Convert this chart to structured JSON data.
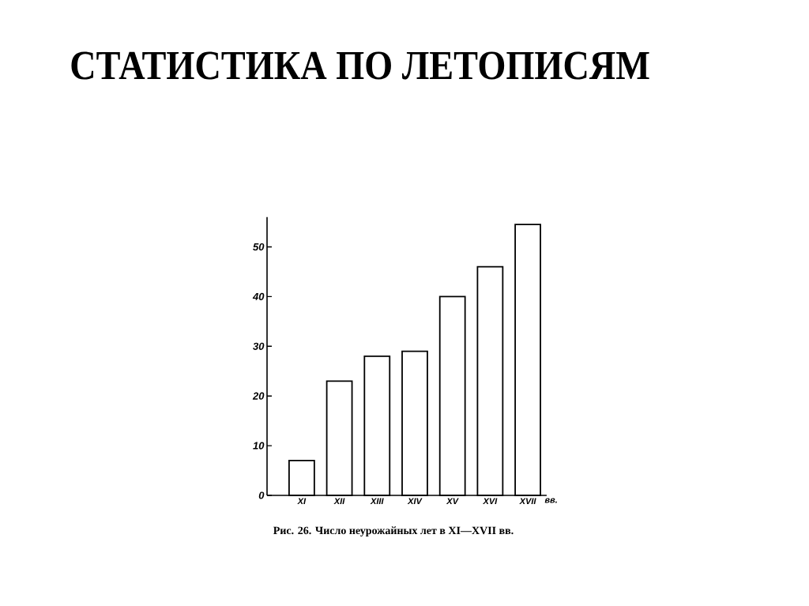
{
  "chart_data": {
    "type": "bar",
    "title": "СТАТИСТИКА ПО ЛЕТОПИСЯМ",
    "xlabel": "вв.",
    "categories": [
      "XI",
      "XII",
      "XIII",
      "XIV",
      "XV",
      "XVI",
      "XVII"
    ],
    "values": [
      7,
      23,
      28,
      29,
      40,
      46,
      54.5
    ],
    "color": "#ffffff",
    "ylim": [
      0,
      56
    ],
    "yticks": [
      0,
      10,
      20,
      30,
      40,
      50
    ],
    "annotations": [
      "Рис. 26. Число неурожайных лет в XI—XVII вв."
    ]
  }
}
